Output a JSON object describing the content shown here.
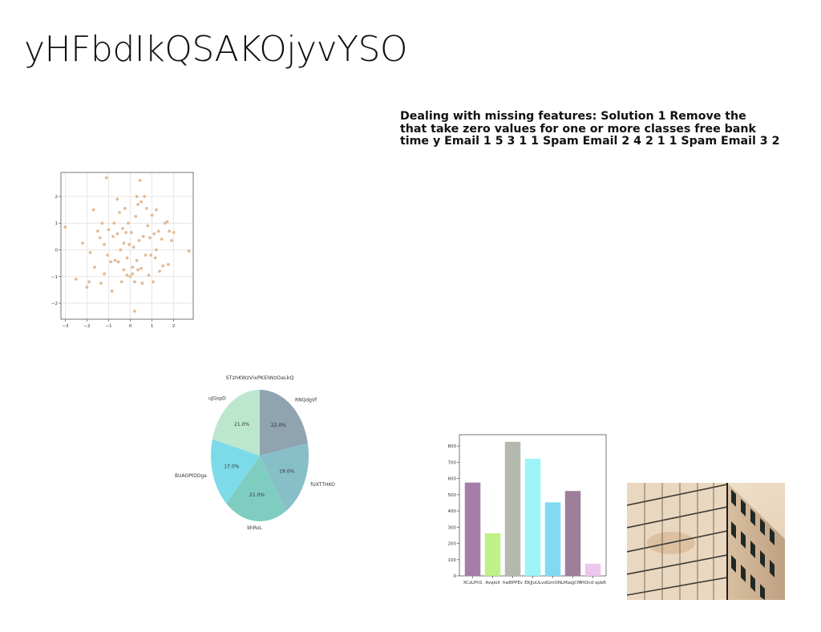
{
  "slide": {
    "title": "yHFbdIkQSAKOjyvYSO",
    "body_lines": [
      "Dealing with missing features: Solution 1 Remove the",
      "that take zero values for one or more classes free bank",
      "time y Email 1 5 3 1 1 Spam Email 2 4 2 1 1 Spam Email 3 2"
    ]
  },
  "chart_data": [
    {
      "type": "scatter",
      "color": "#e0b48c",
      "xlim": [
        -3.2,
        2.9
      ],
      "ylim": [
        -2.6,
        2.9
      ],
      "xticks": [
        -3,
        -2,
        -1,
        0,
        1,
        2
      ],
      "yticks": [
        -2,
        -1,
        0,
        1,
        2
      ],
      "grid": true,
      "points": [
        [
          -3.0,
          0.85
        ],
        [
          -2.5,
          -1.1
        ],
        [
          -2.2,
          0.25
        ],
        [
          -2.0,
          -1.4
        ],
        [
          -1.9,
          -1.2
        ],
        [
          -1.85,
          -0.1
        ],
        [
          -1.7,
          1.5
        ],
        [
          -1.65,
          -0.65
        ],
        [
          -1.5,
          0.7
        ],
        [
          -1.35,
          -1.25
        ],
        [
          -1.3,
          1.0
        ],
        [
          -1.2,
          0.2
        ],
        [
          -1.2,
          -0.9
        ],
        [
          -1.1,
          2.7
        ],
        [
          -1.05,
          -0.2
        ],
        [
          -1.0,
          0.75
        ],
        [
          -0.9,
          -0.45
        ],
        [
          -0.85,
          -1.55
        ],
        [
          -0.8,
          0.5
        ],
        [
          -0.75,
          1.0
        ],
        [
          -0.7,
          -0.4
        ],
        [
          -0.6,
          0.6
        ],
        [
          -0.55,
          -0.45
        ],
        [
          -0.5,
          1.4
        ],
        [
          -0.45,
          0.0
        ],
        [
          -0.4,
          -1.2
        ],
        [
          -0.35,
          0.8
        ],
        [
          -0.3,
          0.25
        ],
        [
          -0.3,
          -0.75
        ],
        [
          -0.25,
          1.55
        ],
        [
          -0.2,
          0.65
        ],
        [
          -0.15,
          -0.3
        ],
        [
          -0.1,
          1.0
        ],
        [
          -0.05,
          0.2
        ],
        [
          0.0,
          -1.0
        ],
        [
          0.05,
          0.65
        ],
        [
          0.1,
          -0.65
        ],
        [
          0.15,
          0.1
        ],
        [
          0.2,
          -1.2
        ],
        [
          0.2,
          -2.3
        ],
        [
          0.25,
          1.25
        ],
        [
          0.3,
          2.0
        ],
        [
          0.3,
          -0.4
        ],
        [
          0.35,
          1.7
        ],
        [
          0.4,
          0.35
        ],
        [
          0.45,
          2.6
        ],
        [
          0.5,
          -0.7
        ],
        [
          0.5,
          1.8
        ],
        [
          0.55,
          -1.25
        ],
        [
          0.6,
          0.5
        ],
        [
          0.65,
          2.0
        ],
        [
          0.7,
          -0.2
        ],
        [
          0.75,
          1.55
        ],
        [
          0.8,
          0.9
        ],
        [
          0.85,
          -0.95
        ],
        [
          0.9,
          0.45
        ],
        [
          1.0,
          1.3
        ],
        [
          1.05,
          -1.2
        ],
        [
          1.1,
          0.6
        ],
        [
          1.15,
          -0.3
        ],
        [
          1.2,
          1.5
        ],
        [
          1.2,
          0.0
        ],
        [
          1.3,
          0.7
        ],
        [
          1.35,
          -0.8
        ],
        [
          1.45,
          0.4
        ],
        [
          1.5,
          -0.6
        ],
        [
          1.6,
          1.0
        ],
        [
          1.75,
          -0.55
        ],
        [
          1.8,
          0.7
        ],
        [
          1.9,
          0.35
        ],
        [
          2.0,
          0.65
        ],
        [
          2.7,
          -0.05
        ],
        [
          -0.6,
          1.9
        ],
        [
          0.1,
          -0.9
        ],
        [
          -1.4,
          0.45
        ],
        [
          1.7,
          1.05
        ],
        [
          0.95,
          -0.2
        ],
        [
          -0.15,
          -0.95
        ],
        [
          0.35,
          -0.75
        ]
      ]
    },
    {
      "type": "pie",
      "title": "STzhKWzVixPKEIWzOaLkQ",
      "labels": [
        "RNQdgVf",
        "fUXTTHKO",
        "bhRoL",
        "BUAGPtDDga",
        "uJGspD"
      ],
      "values": [
        22.0,
        19.0,
        21.0,
        17.0,
        21.0
      ],
      "value_labels": [
        "22.0%",
        "19.0%",
        "21.0%",
        "17.0%",
        "21.0%"
      ],
      "colors": [
        "#8fa3b1",
        "#87bfc9",
        "#7fcdc0",
        "#7ddbe9",
        "#bde6cf"
      ],
      "start_angle_deg": 90,
      "direction": "clockwise"
    },
    {
      "type": "bar",
      "categories": [
        "XCzLPhS",
        "AvqIoll",
        "hwBPPEv",
        "EKJJuULvd",
        "GmONLM",
        "aqjCM",
        "IHOnd xpbR"
      ],
      "tick_labels": [
        "XCzLPhS",
        "AvqIoll",
        "hwBPPEv",
        "EKJJuULvdGmONLMaqjCM",
        "IHOnd xpbR"
      ],
      "values": [
        575,
        262,
        826,
        722,
        453,
        523,
        75
      ],
      "colors": [
        "#a47ea8",
        "#bff286",
        "#b3b9ad",
        "#9ef3f6",
        "#82daf2",
        "#9e7f99",
        "#edc6ec"
      ],
      "ylim": [
        0,
        870
      ],
      "yticks": [
        0,
        100,
        200,
        300,
        400,
        500,
        600,
        700,
        800
      ]
    }
  ],
  "image": {
    "subject": "building-facade-photo"
  }
}
